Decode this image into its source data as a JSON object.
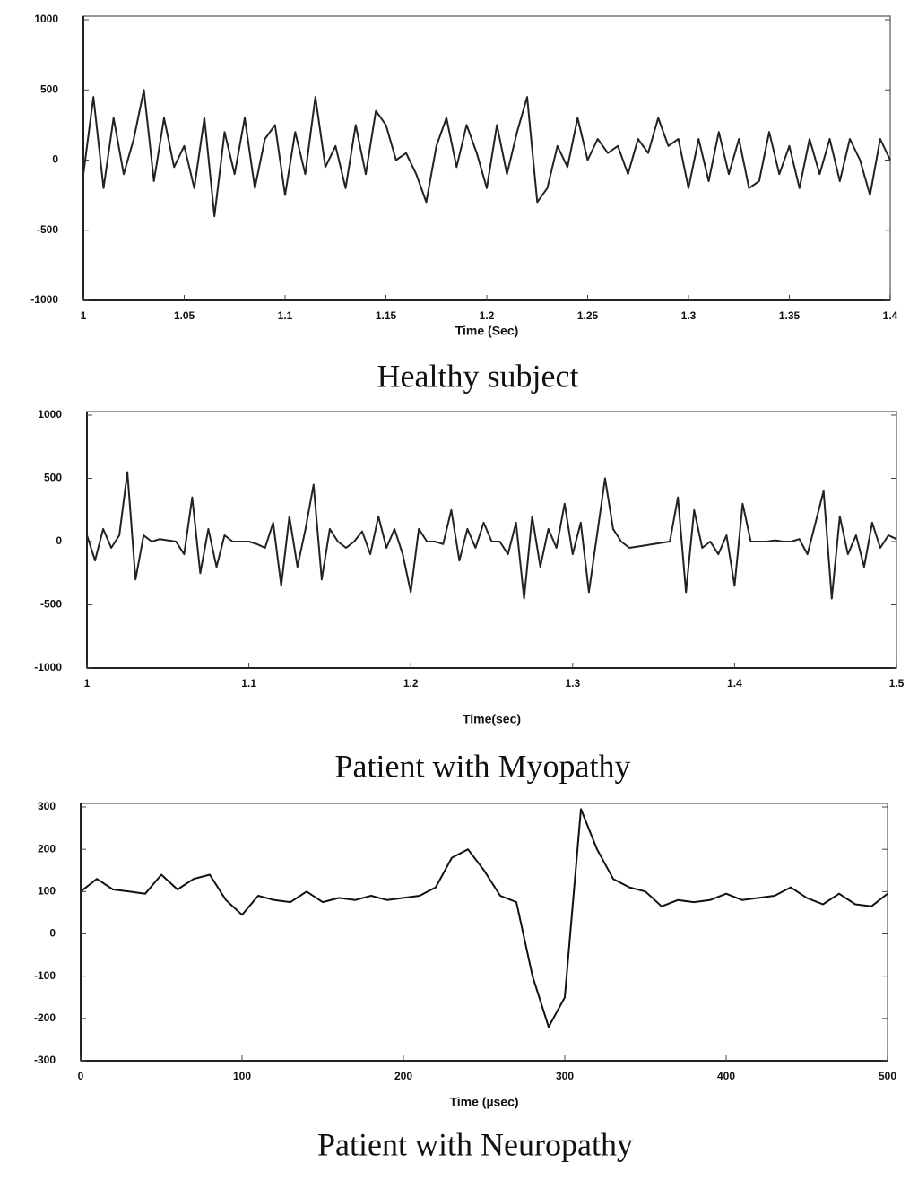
{
  "chart_data": [
    {
      "type": "line",
      "caption": "Healthy subject",
      "x_label": "Time (Sec)",
      "x": [
        1.0,
        1.005,
        1.01,
        1.015,
        1.02,
        1.025,
        1.03,
        1.035,
        1.04,
        1.045,
        1.05,
        1.055,
        1.06,
        1.065,
        1.07,
        1.075,
        1.08,
        1.085,
        1.09,
        1.095,
        1.1,
        1.105,
        1.11,
        1.115,
        1.12,
        1.125,
        1.13,
        1.135,
        1.14,
        1.145,
        1.15,
        1.155,
        1.16,
        1.165,
        1.17,
        1.175,
        1.18,
        1.185,
        1.19,
        1.195,
        1.2,
        1.205,
        1.21,
        1.215,
        1.22,
        1.225,
        1.23,
        1.235,
        1.24,
        1.245,
        1.25,
        1.255,
        1.26,
        1.265,
        1.27,
        1.275,
        1.28,
        1.285,
        1.29,
        1.295,
        1.3,
        1.305,
        1.31,
        1.315,
        1.32,
        1.325,
        1.33,
        1.335,
        1.34,
        1.345,
        1.35,
        1.355,
        1.36,
        1.365,
        1.37,
        1.375,
        1.38,
        1.385,
        1.39,
        1.395,
        1.4
      ],
      "values": [
        -100,
        450,
        -200,
        300,
        -100,
        150,
        500,
        -150,
        300,
        -50,
        100,
        -200,
        300,
        -400,
        200,
        -100,
        300,
        -200,
        150,
        250,
        -250,
        200,
        -100,
        450,
        -50,
        100,
        -200,
        250,
        -100,
        350,
        250,
        0,
        50,
        -100,
        -300,
        100,
        300,
        -50,
        250,
        50,
        -200,
        250,
        -100,
        200,
        450,
        -300,
        -200,
        100,
        -50,
        300,
        0,
        150,
        50,
        100,
        -100,
        150,
        50,
        300,
        100,
        150,
        -200,
        150,
        -150,
        200,
        -100,
        150,
        -200,
        -150,
        200,
        -100,
        100,
        -200,
        150,
        -100,
        150,
        -150,
        150,
        0,
        -250,
        150,
        0
      ],
      "color": "#222222",
      "xlim": [
        1,
        1.4
      ],
      "xticks": [
        1,
        1.05,
        1.1,
        1.15,
        1.2,
        1.25,
        1.3,
        1.35,
        1.4
      ],
      "ylim": [
        -1000,
        1000
      ],
      "yticks": [
        -1000,
        -500,
        0,
        500,
        1000
      ]
    },
    {
      "type": "line",
      "caption": "Patient with Myopathy",
      "x_label": "Time(sec)",
      "x": [
        1.0,
        1.005,
        1.01,
        1.015,
        1.02,
        1.025,
        1.03,
        1.035,
        1.04,
        1.045,
        1.05,
        1.055,
        1.06,
        1.065,
        1.07,
        1.075,
        1.08,
        1.085,
        1.09,
        1.095,
        1.1,
        1.105,
        1.11,
        1.115,
        1.12,
        1.125,
        1.13,
        1.135,
        1.14,
        1.145,
        1.15,
        1.155,
        1.16,
        1.165,
        1.17,
        1.175,
        1.18,
        1.185,
        1.19,
        1.195,
        1.2,
        1.205,
        1.21,
        1.215,
        1.22,
        1.225,
        1.23,
        1.235,
        1.24,
        1.245,
        1.25,
        1.255,
        1.26,
        1.265,
        1.27,
        1.275,
        1.28,
        1.285,
        1.29,
        1.295,
        1.3,
        1.305,
        1.31,
        1.315,
        1.32,
        1.325,
        1.33,
        1.335,
        1.34,
        1.345,
        1.35,
        1.355,
        1.36,
        1.365,
        1.37,
        1.375,
        1.38,
        1.385,
        1.39,
        1.395,
        1.4,
        1.405,
        1.41,
        1.415,
        1.42,
        1.425,
        1.43,
        1.435,
        1.44,
        1.445,
        1.45,
        1.455,
        1.46,
        1.465,
        1.47,
        1.475,
        1.48,
        1.485,
        1.49,
        1.495,
        1.5
      ],
      "values": [
        50,
        -150,
        100,
        -50,
        50,
        550,
        -300,
        50,
        0,
        20,
        10,
        0,
        -100,
        350,
        -250,
        100,
        -200,
        50,
        0,
        0,
        0,
        -20,
        -50,
        150,
        -350,
        200,
        -200,
        100,
        450,
        -300,
        100,
        0,
        -50,
        0,
        80,
        -100,
        200,
        -50,
        100,
        -100,
        -400,
        100,
        0,
        0,
        -20,
        250,
        -150,
        100,
        -50,
        150,
        0,
        0,
        -100,
        150,
        -450,
        200,
        -200,
        100,
        -50,
        300,
        -100,
        150,
        -400,
        50,
        500,
        100,
        0,
        -50,
        -40,
        -30,
        -20,
        -10,
        0,
        350,
        -400,
        250,
        -50,
        0,
        -100,
        50,
        -350,
        300,
        0,
        0,
        0,
        10,
        0,
        0,
        20,
        -100,
        150,
        400,
        -450,
        200,
        -100,
        50,
        -200,
        150,
        -50,
        50,
        20
      ],
      "color": "#222222",
      "xlim": [
        1,
        1.5
      ],
      "xticks": [
        1,
        1.1,
        1.2,
        1.3,
        1.4,
        1.5
      ],
      "ylim": [
        -1000,
        1000
      ],
      "yticks": [
        -1000,
        -500,
        0,
        500,
        1000
      ]
    },
    {
      "type": "line",
      "caption": "Patient with Neuropathy",
      "x_label": "Time (µsec)",
      "x": [
        0,
        10,
        20,
        30,
        40,
        50,
        60,
        70,
        80,
        90,
        100,
        110,
        120,
        130,
        140,
        150,
        160,
        170,
        180,
        190,
        200,
        210,
        220,
        230,
        240,
        250,
        260,
        270,
        280,
        290,
        300,
        310,
        320,
        330,
        340,
        350,
        360,
        370,
        380,
        390,
        400,
        410,
        420,
        430,
        440,
        450,
        460,
        470,
        480,
        490,
        500
      ],
      "values": [
        100,
        130,
        105,
        100,
        95,
        140,
        105,
        130,
        140,
        80,
        45,
        90,
        80,
        75,
        100,
        75,
        85,
        80,
        90,
        80,
        85,
        90,
        110,
        180,
        200,
        150,
        90,
        75,
        -100,
        -220,
        -150,
        295,
        200,
        130,
        110,
        100,
        65,
        80,
        75,
        80,
        95,
        80,
        85,
        90,
        110,
        85,
        70,
        95,
        70,
        65,
        95
      ],
      "color": "#111111",
      "xlim": [
        0,
        500
      ],
      "xticks": [
        0,
        100,
        200,
        300,
        400,
        500
      ],
      "ylim": [
        -300,
        300
      ],
      "yticks": [
        -300,
        -200,
        -100,
        0,
        100,
        200,
        300
      ]
    }
  ]
}
